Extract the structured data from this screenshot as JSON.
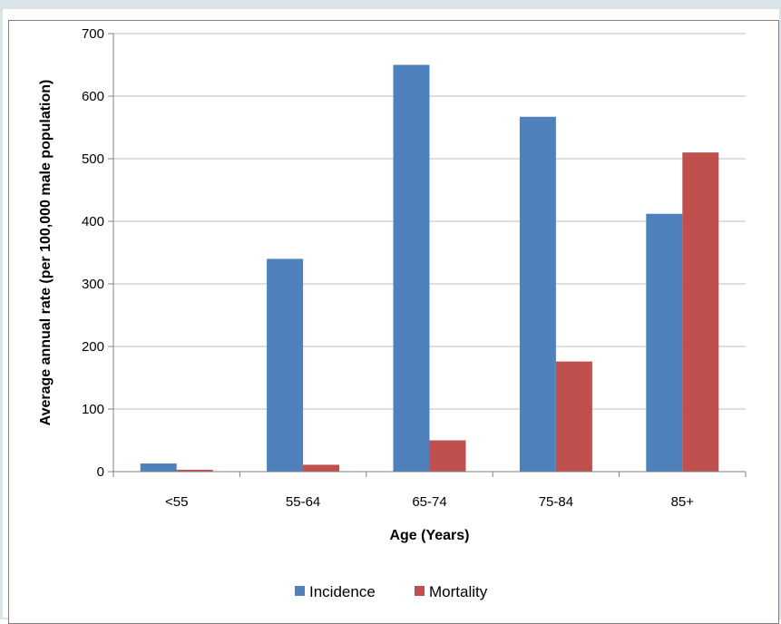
{
  "chart_data": {
    "type": "bar",
    "categories": [
      "<55",
      "55-64",
      "65-74",
      "75-84",
      "85+"
    ],
    "series": [
      {
        "name": "Incidence",
        "color": "#4f81bd",
        "values": [
          13,
          340,
          650,
          567,
          412
        ]
      },
      {
        "name": "Mortality",
        "color": "#c0504d",
        "values": [
          3,
          11,
          50,
          176,
          510
        ]
      }
    ],
    "xlabel": "Age (Years)",
    "ylabel": "Average annual rate (per 100,000 male population)",
    "ylim": [
      0,
      700
    ],
    "yticks": [
      0,
      100,
      200,
      300,
      400,
      500,
      600,
      700
    ],
    "grid": true,
    "legend_position": "bottom"
  }
}
